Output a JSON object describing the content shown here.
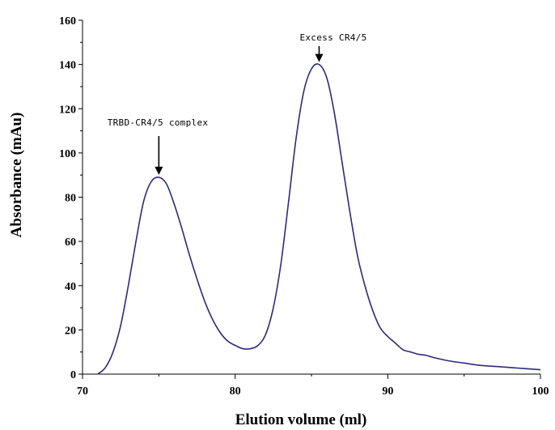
{
  "chart_data": {
    "type": "line",
    "title": "",
    "xlabel": "Elution volume (ml)",
    "ylabel": "Absorbance (mAu)",
    "xlim": [
      70,
      100
    ],
    "ylim": [
      0,
      160
    ],
    "x_ticks": [
      70,
      80,
      90,
      100
    ],
    "y_ticks": [
      0,
      20,
      40,
      60,
      80,
      100,
      120,
      140,
      160
    ],
    "grid": false,
    "line_color": "#2b2b7f",
    "series": [
      {
        "name": "",
        "x": [
          71.0,
          71.5,
          72.0,
          72.5,
          73.0,
          73.5,
          74.0,
          74.5,
          75.0,
          75.5,
          76.0,
          76.5,
          77.0,
          77.5,
          78.0,
          78.5,
          79.0,
          79.5,
          80.0,
          80.5,
          81.0,
          81.5,
          82.0,
          82.5,
          83.0,
          83.5,
          84.0,
          84.5,
          85.0,
          85.5,
          86.0,
          86.5,
          87.0,
          87.5,
          88.0,
          88.5,
          89.0,
          89.5,
          90.0,
          90.5,
          91.0,
          91.5,
          92.0,
          92.5,
          93.0,
          94.0,
          95.0,
          96.0,
          97.0,
          98.0,
          99.0,
          100.0
        ],
        "values": [
          0,
          3,
          10,
          22,
          40,
          60,
          78,
          87,
          89,
          86,
          77,
          66,
          54,
          43,
          33,
          25,
          19,
          15,
          13,
          11.5,
          11.5,
          13,
          18,
          30,
          50,
          78,
          107,
          128,
          138,
          140,
          134,
          118,
          96,
          74,
          54,
          40,
          29,
          21,
          17,
          14,
          11,
          10,
          9,
          8.5,
          7.5,
          6,
          5,
          4,
          3.5,
          3,
          2.5,
          2
        ]
      }
    ],
    "annotations": [
      {
        "text": "TRBD-CR4/5 complex",
        "arrow_to_x": 75.0,
        "arrow_to_y": 89
      },
      {
        "text": "Excess CR4/5",
        "arrow_to_x": 85.5,
        "arrow_to_y": 140
      }
    ]
  }
}
